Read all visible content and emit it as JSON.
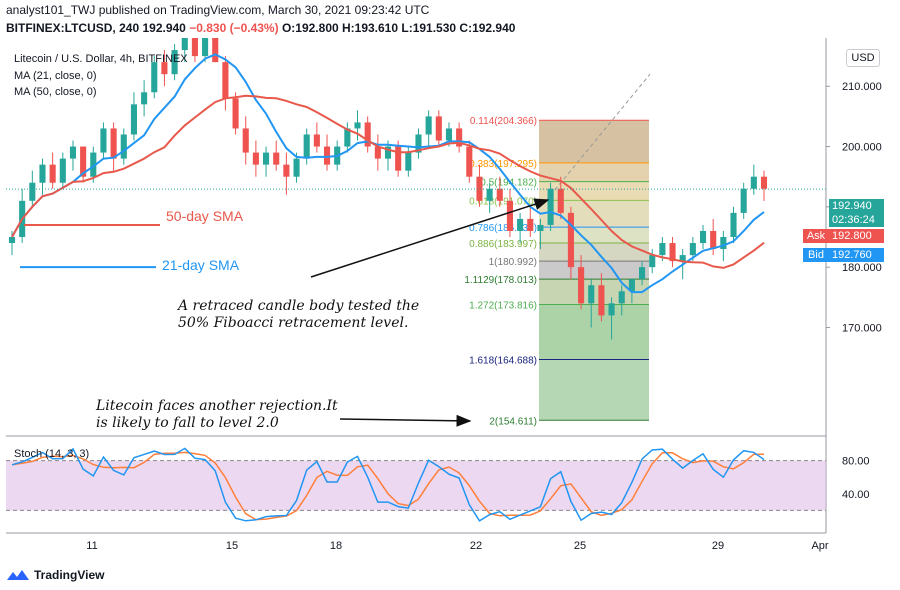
{
  "header": {
    "line1": "analyst101_TWJ published on TradingView.com, March 30, 2021 09:23:42 UTC",
    "symbol": "BITFINEX:LTCUSD, 240",
    "last": "192.940",
    "change": "−0.830 (−0.43%)",
    "ohlc": "O:192.800 H:193.610 L:191.530 C:192.940"
  },
  "legend": {
    "title": "Litecoin / U.S. Dollar, 4h, BITFINEX",
    "ma21": "MA (21, close, 0)",
    "ma50": "MA (50, close, 0)"
  },
  "currency_button": "USD",
  "tags": {
    "price": "192.940",
    "countdown": "02:36:24",
    "ask_label": "Ask",
    "ask_value": "192.800",
    "bid_label": "Bid",
    "bid_value": "192.760"
  },
  "annotations": {
    "sma50": "50-day SMA",
    "sma21": "21-day SMA",
    "note1_line1": "A retraced candle body tested the",
    "note1_line2": "50% Fiboacci retracement level.",
    "note2_line1": "Litecoin faces another rejection.It",
    "note2_line2": "is likely to fall to level 2.0"
  },
  "stoch_label": "Stoch (14, 3, 3)",
  "footer": "TradingView",
  "colors": {
    "up": "#26a69a",
    "down": "#ef5350",
    "ma21": "#2196f3",
    "ma50": "#e8584b",
    "stoch_k": "#2196f3",
    "stoch_d": "#ff7f3a",
    "stoch_band": "#e1bee7"
  },
  "chart_data": {
    "type": "candlestick",
    "x_ticks": [
      "11",
      "15",
      "18",
      "22",
      "25",
      "29",
      "Apr"
    ],
    "y_ticks": [
      "170.000",
      "180.000",
      "190.000",
      "200.000",
      "210.000"
    ],
    "y_range": [
      152,
      218
    ],
    "candles": [
      [
        184,
        186,
        182,
        185
      ],
      [
        185,
        193,
        184,
        191
      ],
      [
        191,
        196,
        190,
        194
      ],
      [
        194,
        198,
        192,
        197
      ],
      [
        197,
        199,
        193,
        194
      ],
      [
        194,
        199,
        193,
        198
      ],
      [
        198,
        201,
        196,
        200
      ],
      [
        200,
        200,
        194,
        195
      ],
      [
        195,
        200,
        194,
        199
      ],
      [
        199,
        204,
        198,
        203
      ],
      [
        203,
        204,
        196,
        198
      ],
      [
        198,
        203,
        197,
        202
      ],
      [
        202,
        209,
        201,
        207
      ],
      [
        207,
        211,
        205,
        209
      ],
      [
        209,
        215,
        208,
        214
      ],
      [
        214,
        216,
        210,
        212
      ],
      [
        212,
        217,
        211,
        216
      ],
      [
        216,
        219,
        214,
        218
      ],
      [
        218,
        219,
        214,
        215
      ],
      [
        215,
        219,
        214,
        218
      ],
      [
        218,
        219,
        214,
        214
      ],
      [
        214,
        215,
        206,
        208
      ],
      [
        208,
        209,
        202,
        203
      ],
      [
        203,
        205,
        197,
        199
      ],
      [
        199,
        201,
        195,
        197
      ],
      [
        197,
        200,
        195,
        199
      ],
      [
        199,
        201,
        196,
        197
      ],
      [
        197,
        199,
        192,
        195
      ],
      [
        195,
        199,
        194,
        198
      ],
      [
        198,
        203,
        197,
        202
      ],
      [
        202,
        204,
        199,
        200
      ],
      [
        200,
        202,
        196,
        197
      ],
      [
        197,
        201,
        196,
        200
      ],
      [
        200,
        204,
        199,
        203
      ],
      [
        203,
        206,
        201,
        204
      ],
      [
        204,
        205,
        199,
        200
      ],
      [
        200,
        202,
        196,
        198
      ],
      [
        198,
        201,
        196,
        200
      ],
      [
        200,
        201,
        195,
        196
      ],
      [
        196,
        200,
        195,
        199
      ],
      [
        199,
        203,
        198,
        202
      ],
      [
        202,
        206,
        200,
        205
      ],
      [
        205,
        206,
        200,
        201
      ],
      [
        201,
        204,
        200,
        203
      ],
      [
        203,
        204,
        199,
        200
      ],
      [
        200,
        201,
        194,
        195
      ],
      [
        195,
        197,
        190,
        191
      ],
      [
        191,
        194,
        189,
        193
      ],
      [
        193,
        195,
        190,
        191
      ],
      [
        191,
        193,
        185,
        186
      ],
      [
        186,
        189,
        184,
        188
      ],
      [
        188,
        190,
        185,
        186
      ],
      [
        186,
        188,
        183,
        187
      ],
      [
        187,
        194,
        186,
        193
      ],
      [
        193,
        195,
        188,
        189
      ],
      [
        189,
        190,
        178,
        180
      ],
      [
        180,
        182,
        173,
        174
      ],
      [
        174,
        178,
        170,
        177
      ],
      [
        177,
        179,
        171,
        172
      ],
      [
        172,
        175,
        168,
        174
      ],
      [
        174,
        177,
        172,
        176
      ],
      [
        176,
        178,
        174,
        178
      ],
      [
        178,
        181,
        177,
        180
      ],
      [
        180,
        183,
        179,
        182
      ],
      [
        182,
        185,
        181,
        184
      ],
      [
        184,
        185,
        180,
        181
      ],
      [
        181,
        183,
        178,
        182
      ],
      [
        182,
        185,
        181,
        184
      ],
      [
        184,
        187,
        183,
        186
      ],
      [
        186,
        188,
        182,
        183
      ],
      [
        183,
        186,
        181,
        185
      ],
      [
        185,
        190,
        184,
        189
      ],
      [
        189,
        194,
        188,
        193
      ],
      [
        193,
        197,
        192,
        195
      ],
      [
        195,
        196,
        191,
        193
      ]
    ],
    "fib_levels": [
      {
        "label": "0.114(204.366)",
        "value": 204.366
      },
      {
        "label": "0.383(197.295)",
        "value": 197.295
      },
      {
        "label": "0.5(194.182)",
        "value": 194.182
      },
      {
        "label": "0.618(191.070)",
        "value": 191.07
      },
      {
        "label": "0.786(186.637)",
        "value": 186.637
      },
      {
        "label": "0.886(183.997)",
        "value": 183.997
      },
      {
        "label": "1(180.992)",
        "value": 180.992
      },
      {
        "label": "1.1129(178.013)",
        "value": 178.013
      },
      {
        "label": "1.272(173.816)",
        "value": 173.816
      },
      {
        "label": "1.618(164.688)",
        "value": 164.688
      },
      {
        "label": "2(154.611)",
        "value": 154.611
      }
    ],
    "stoch_ticks": [
      "80.00",
      "40.00"
    ],
    "stoch_range": [
      0,
      100
    ]
  }
}
